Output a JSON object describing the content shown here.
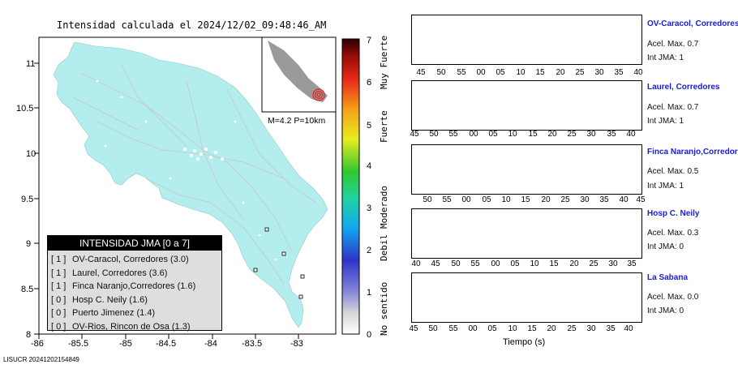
{
  "title": "Intensidad calculada el 2024/12/02_09:48:46_AM",
  "sensor_id": "LISUCR 20241202154849",
  "map": {
    "lon_ticks": [
      "-86",
      "-85.5",
      "-85",
      "-84.5",
      "-84",
      "-83.5",
      "-83"
    ],
    "lat_ticks": [
      "11",
      "10.5",
      "10",
      "9.5",
      "9",
      "8.5",
      "8"
    ],
    "land_color": "#b3eded",
    "inset_label": "M=4.2 P=10km"
  },
  "legend": {
    "title": "INTENSIDAD JMA [0 a 7]",
    "rows": [
      {
        "code": "[ 1 ]",
        "name": "OV-Caracol, Corredores (3.0)"
      },
      {
        "code": "[ 1 ]",
        "name": "Laurel, Corredores (3.6)"
      },
      {
        "code": "[ 1 ]",
        "name": "Finca Naranjo,Corredores (1.6)"
      },
      {
        "code": "[ 0 ]",
        "name": "Hosp C. Neily (1.6)"
      },
      {
        "code": "[ 0 ]",
        "name": "Puerto Jimenez (1.4)"
      },
      {
        "code": "[ 0 ]",
        "name": "OV-Rios, Rincon de Osa (1.3)"
      }
    ]
  },
  "colorbar": {
    "ticks": [
      "0",
      "1",
      "2",
      "3",
      "4",
      "5",
      "6",
      "7"
    ],
    "labels": [
      "No sentido",
      "Debil",
      "Moderado",
      "Fuerte",
      "Muy Fuerte"
    ]
  },
  "traces": [
    {
      "name": "OV-Caracol, Corredores",
      "acel": "Acel. Max. 0.7",
      "jma": "Int JMA: 1",
      "color": "#0a6a0a",
      "ticks": [
        "45",
        "50",
        "55",
        "00",
        "05",
        "10",
        "15",
        "20",
        "25",
        "30",
        "35",
        "40"
      ]
    },
    {
      "name": "Laurel, Corredores",
      "acel": "Acel. Max. 0.7",
      "jma": "Int JMA: 1",
      "color": "#0a6a0a",
      "ticks": [
        "45",
        "50",
        "55",
        "00",
        "05",
        "10",
        "15",
        "20",
        "25",
        "30",
        "35",
        "40"
      ]
    },
    {
      "name": "Finca Naranjo,Corredores",
      "acel": "Acel. Max. 0.5",
      "jma": "Int JMA: 1",
      "color": "#0a6a0a",
      "ticks": [
        "50",
        "55",
        "00",
        "05",
        "10",
        "15",
        "20",
        "25",
        "30",
        "35",
        "40",
        "45"
      ]
    },
    {
      "name": "Hosp C. Neily",
      "acel": "Acel. Max. 0.3",
      "jma": "Int JMA: 0",
      "color": "#0a6a0a",
      "ticks": [
        "40",
        "45",
        "50",
        "55",
        "00",
        "05",
        "10",
        "15",
        "20",
        "25",
        "30",
        "35"
      ]
    },
    {
      "name": "La Sabana",
      "acel": "Acel. Max. 0.0",
      "jma": "Int JMA: 0",
      "color": "#f5a800",
      "ticks": [
        "45",
        "50",
        "55",
        "00",
        "05",
        "10",
        "15",
        "20",
        "25",
        "30",
        "35",
        "40"
      ]
    }
  ],
  "x_axis_label": "Tiempo (s)"
}
